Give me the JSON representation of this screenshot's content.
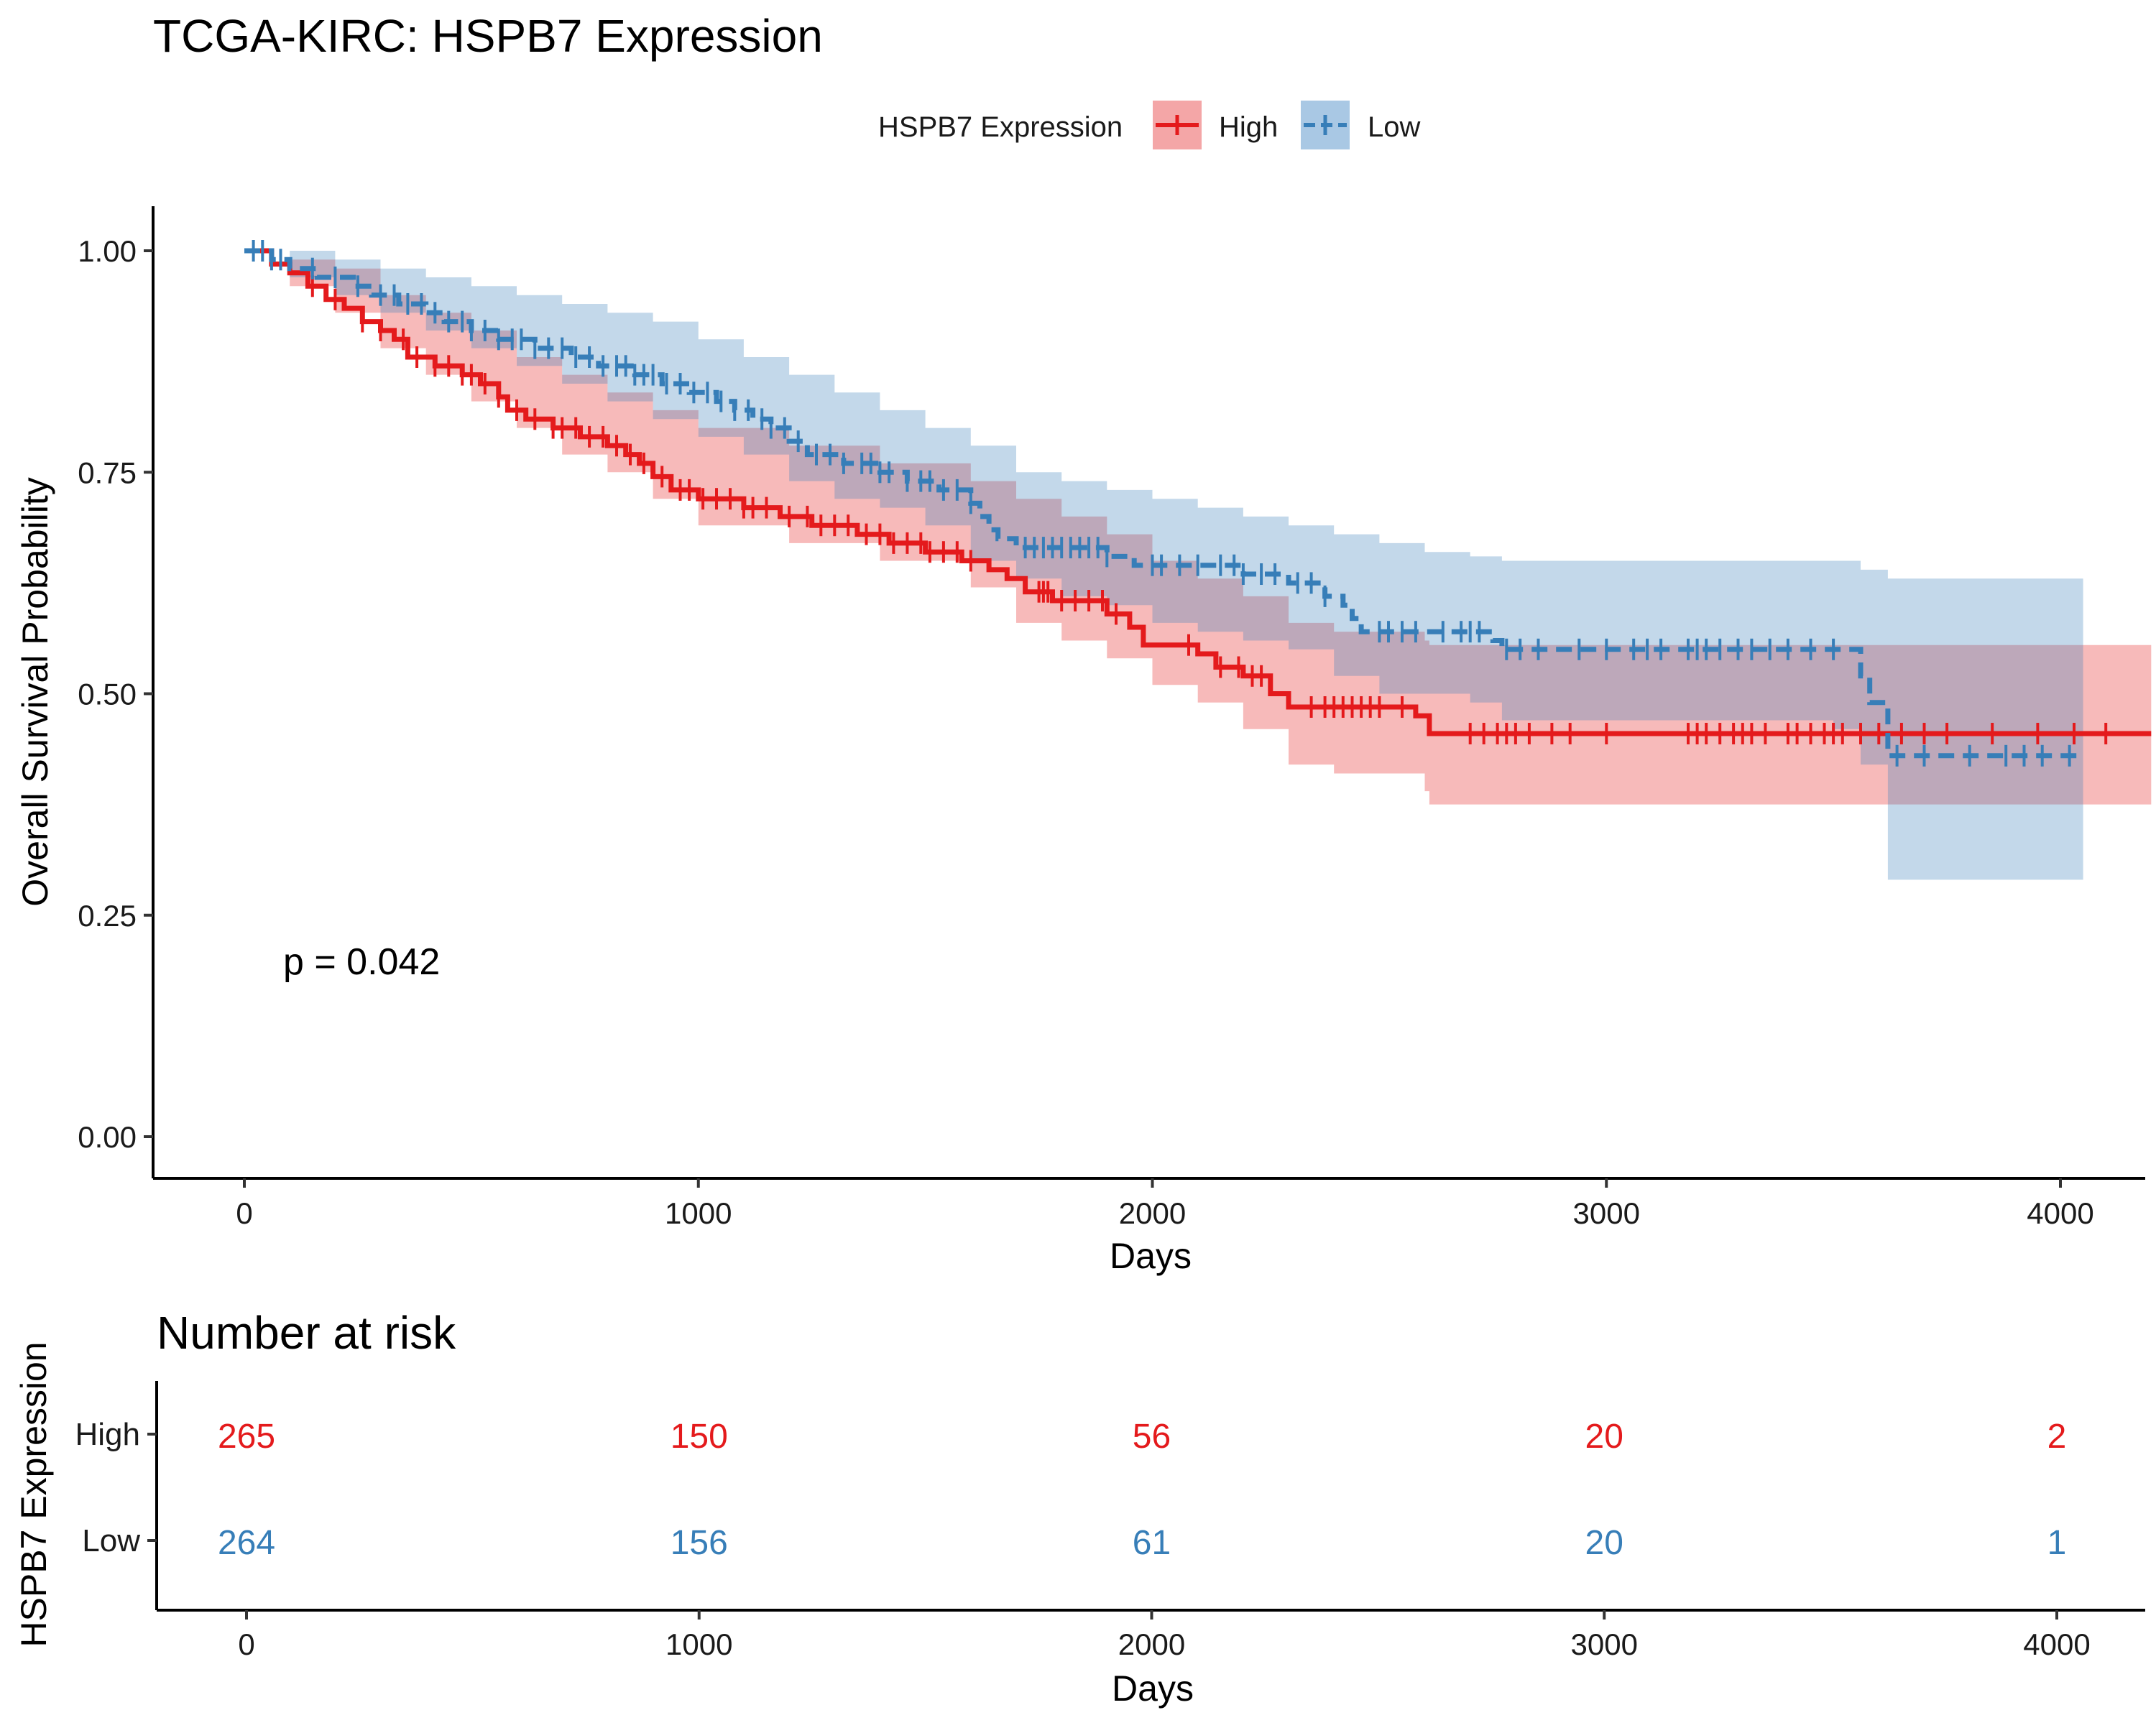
{
  "title": "TCGA-KIRC: HSPB7 Expression",
  "legend": {
    "title": "HSPB7 Expression",
    "entries": [
      {
        "label": "High",
        "color": "#E41A1C",
        "fill": "#F4A6A7"
      },
      {
        "label": "Low",
        "color": "#377EB8",
        "fill": "#A9C8E4"
      }
    ]
  },
  "p_value_text": "p = 0.042",
  "chart_data": [
    {
      "type": "line",
      "subtype": "kaplan-meier step curve with confidence bands and censor marks",
      "xlabel": "Days",
      "ylabel": "Overall Survival Probability",
      "xlim": [
        -200,
        4200
      ],
      "ylim": [
        -0.05,
        1.05
      ],
      "x_ticks": [
        0,
        1000,
        2000,
        3000,
        4000
      ],
      "y_ticks": [
        0.0,
        0.25,
        0.5,
        0.75,
        1.0
      ],
      "y_tick_labels": [
        "0.00",
        "0.25",
        "0.50",
        "0.75",
        "1.00"
      ],
      "grid": false,
      "legend_position": "top",
      "series": [
        {
          "name": "High",
          "color": "#E41A1C",
          "dashed": false,
          "steps": [
            [
              0,
              1.0
            ],
            [
              60,
              0.985
            ],
            [
              100,
              0.975
            ],
            [
              140,
              0.96
            ],
            [
              180,
              0.945
            ],
            [
              220,
              0.935
            ],
            [
              260,
              0.92
            ],
            [
              300,
              0.91
            ],
            [
              330,
              0.9
            ],
            [
              360,
              0.88
            ],
            [
              420,
              0.87
            ],
            [
              480,
              0.86
            ],
            [
              520,
              0.85
            ],
            [
              560,
              0.835
            ],
            [
              580,
              0.82
            ],
            [
              620,
              0.81
            ],
            [
              680,
              0.8
            ],
            [
              740,
              0.79
            ],
            [
              800,
              0.78
            ],
            [
              840,
              0.77
            ],
            [
              870,
              0.76
            ],
            [
              900,
              0.745
            ],
            [
              940,
              0.73
            ],
            [
              1000,
              0.72
            ],
            [
              1100,
              0.71
            ],
            [
              1180,
              0.7
            ],
            [
              1250,
              0.69
            ],
            [
              1350,
              0.68
            ],
            [
              1420,
              0.67
            ],
            [
              1500,
              0.66
            ],
            [
              1580,
              0.65
            ],
            [
              1640,
              0.64
            ],
            [
              1680,
              0.63
            ],
            [
              1720,
              0.615
            ],
            [
              1780,
              0.605
            ],
            [
              1900,
              0.59
            ],
            [
              1950,
              0.575
            ],
            [
              1980,
              0.555
            ],
            [
              2100,
              0.545
            ],
            [
              2140,
              0.53
            ],
            [
              2200,
              0.52
            ],
            [
              2260,
              0.5
            ],
            [
              2300,
              0.485
            ],
            [
              2580,
              0.475
            ],
            [
              2610,
              0.455
            ],
            [
              4200,
              0.455
            ]
          ],
          "lower": [
            [
              0,
              1.0
            ],
            [
              100,
              0.96
            ],
            [
              200,
              0.93
            ],
            [
              300,
              0.89
            ],
            [
              400,
              0.86
            ],
            [
              500,
              0.83
            ],
            [
              600,
              0.8
            ],
            [
              700,
              0.77
            ],
            [
              800,
              0.75
            ],
            [
              900,
              0.72
            ],
            [
              1000,
              0.69
            ],
            [
              1200,
              0.67
            ],
            [
              1400,
              0.65
            ],
            [
              1600,
              0.62
            ],
            [
              1700,
              0.58
            ],
            [
              1800,
              0.56
            ],
            [
              1900,
              0.54
            ],
            [
              2000,
              0.51
            ],
            [
              2100,
              0.49
            ],
            [
              2200,
              0.46
            ],
            [
              2300,
              0.42
            ],
            [
              2400,
              0.41
            ],
            [
              2600,
              0.39
            ],
            [
              2610,
              0.375
            ],
            [
              4200,
              0.375
            ]
          ],
          "upper": [
            [
              0,
              1.0
            ],
            [
              100,
              0.99
            ],
            [
              200,
              0.98
            ],
            [
              300,
              0.95
            ],
            [
              400,
              0.93
            ],
            [
              500,
              0.91
            ],
            [
              600,
              0.88
            ],
            [
              700,
              0.86
            ],
            [
              800,
              0.84
            ],
            [
              900,
              0.82
            ],
            [
              1000,
              0.8
            ],
            [
              1200,
              0.78
            ],
            [
              1400,
              0.76
            ],
            [
              1600,
              0.74
            ],
            [
              1700,
              0.72
            ],
            [
              1800,
              0.7
            ],
            [
              1900,
              0.68
            ],
            [
              2000,
              0.65
            ],
            [
              2100,
              0.63
            ],
            [
              2200,
              0.61
            ],
            [
              2300,
              0.58
            ],
            [
              2400,
              0.57
            ],
            [
              2600,
              0.56
            ],
            [
              2610,
              0.555
            ],
            [
              4200,
              0.555
            ]
          ],
          "censor_x": [
            150,
            200,
            260,
            300,
            350,
            380,
            420,
            450,
            480,
            500,
            530,
            560,
            600,
            640,
            680,
            700,
            730,
            760,
            790,
            820,
            850,
            880,
            920,
            960,
            980,
            1010,
            1040,
            1070,
            1100,
            1120,
            1150,
            1200,
            1240,
            1270,
            1300,
            1330,
            1370,
            1400,
            1430,
            1460,
            1490,
            1510,
            1540,
            1570,
            1600,
            1750,
            1760,
            1770,
            1800,
            1830,
            1860,
            1890,
            1920,
            2080,
            2150,
            2190,
            2220,
            2240,
            2350,
            2380,
            2400,
            2420,
            2440,
            2460,
            2480,
            2500,
            2550,
            2700,
            2730,
            2760,
            2780,
            2800,
            2830,
            2880,
            2920,
            3000,
            3180,
            3200,
            3220,
            3250,
            3280,
            3300,
            3320,
            3350,
            3400,
            3420,
            3450,
            3480,
            3500,
            3520,
            3560,
            3600,
            3650,
            3700,
            3750,
            3850,
            3950,
            4030,
            4100
          ]
        },
        {
          "name": "Low",
          "color": "#377EB8",
          "dashed": true,
          "steps": [
            [
              0,
              1.0
            ],
            [
              60,
              0.99
            ],
            [
              100,
              0.98
            ],
            [
              160,
              0.97
            ],
            [
              240,
              0.96
            ],
            [
              280,
              0.95
            ],
            [
              340,
              0.94
            ],
            [
              400,
              0.93
            ],
            [
              440,
              0.92
            ],
            [
              500,
              0.91
            ],
            [
              560,
              0.9
            ],
            [
              640,
              0.89
            ],
            [
              720,
              0.88
            ],
            [
              780,
              0.87
            ],
            [
              860,
              0.86
            ],
            [
              920,
              0.85
            ],
            [
              980,
              0.84
            ],
            [
              1040,
              0.83
            ],
            [
              1080,
              0.82
            ],
            [
              1120,
              0.81
            ],
            [
              1160,
              0.8
            ],
            [
              1200,
              0.785
            ],
            [
              1240,
              0.77
            ],
            [
              1320,
              0.76
            ],
            [
              1400,
              0.75
            ],
            [
              1460,
              0.74
            ],
            [
              1530,
              0.73
            ],
            [
              1600,
              0.715
            ],
            [
              1620,
              0.7
            ],
            [
              1640,
              0.685
            ],
            [
              1660,
              0.675
            ],
            [
              1700,
              0.665
            ],
            [
              1900,
              0.655
            ],
            [
              1960,
              0.645
            ],
            [
              2200,
              0.635
            ],
            [
              2300,
              0.625
            ],
            [
              2380,
              0.61
            ],
            [
              2420,
              0.6
            ],
            [
              2440,
              0.585
            ],
            [
              2460,
              0.57
            ],
            [
              2750,
              0.56
            ],
            [
              2770,
              0.55
            ],
            [
              3560,
              0.52
            ],
            [
              3580,
              0.49
            ],
            [
              3620,
              0.43
            ],
            [
              4050,
              0.43
            ]
          ],
          "lower": [
            [
              0,
              1.0
            ],
            [
              100,
              0.97
            ],
            [
              200,
              0.95
            ],
            [
              300,
              0.93
            ],
            [
              400,
              0.91
            ],
            [
              500,
              0.89
            ],
            [
              600,
              0.87
            ],
            [
              700,
              0.85
            ],
            [
              800,
              0.83
            ],
            [
              900,
              0.81
            ],
            [
              1000,
              0.79
            ],
            [
              1100,
              0.77
            ],
            [
              1200,
              0.74
            ],
            [
              1300,
              0.72
            ],
            [
              1400,
              0.71
            ],
            [
              1500,
              0.69
            ],
            [
              1600,
              0.65
            ],
            [
              1700,
              0.63
            ],
            [
              1800,
              0.61
            ],
            [
              1900,
              0.6
            ],
            [
              2000,
              0.58
            ],
            [
              2100,
              0.57
            ],
            [
              2200,
              0.56
            ],
            [
              2300,
              0.55
            ],
            [
              2400,
              0.52
            ],
            [
              2500,
              0.5
            ],
            [
              2700,
              0.49
            ],
            [
              2770,
              0.47
            ],
            [
              3500,
              0.46
            ],
            [
              3560,
              0.42
            ],
            [
              3620,
              0.29
            ],
            [
              4050,
              0.29
            ]
          ],
          "upper": [
            [
              0,
              1.0
            ],
            [
              100,
              1.0
            ],
            [
              200,
              0.99
            ],
            [
              300,
              0.98
            ],
            [
              400,
              0.97
            ],
            [
              500,
              0.96
            ],
            [
              600,
              0.95
            ],
            [
              700,
              0.94
            ],
            [
              800,
              0.93
            ],
            [
              900,
              0.92
            ],
            [
              1000,
              0.9
            ],
            [
              1100,
              0.88
            ],
            [
              1200,
              0.86
            ],
            [
              1300,
              0.84
            ],
            [
              1400,
              0.82
            ],
            [
              1500,
              0.8
            ],
            [
              1600,
              0.78
            ],
            [
              1700,
              0.75
            ],
            [
              1800,
              0.74
            ],
            [
              1900,
              0.73
            ],
            [
              2000,
              0.72
            ],
            [
              2100,
              0.71
            ],
            [
              2200,
              0.7
            ],
            [
              2300,
              0.69
            ],
            [
              2400,
              0.68
            ],
            [
              2500,
              0.67
            ],
            [
              2600,
              0.66
            ],
            [
              2700,
              0.655
            ],
            [
              2770,
              0.65
            ],
            [
              3500,
              0.65
            ],
            [
              3560,
              0.64
            ],
            [
              3620,
              0.63
            ],
            [
              4050,
              0.63
            ]
          ],
          "censor_x": [
            20,
            40,
            60,
            80,
            150,
            200,
            250,
            300,
            330,
            360,
            390,
            420,
            450,
            480,
            500,
            530,
            560,
            590,
            610,
            640,
            670,
            700,
            730,
            760,
            790,
            820,
            840,
            860,
            880,
            900,
            930,
            960,
            990,
            1020,
            1050,
            1080,
            1110,
            1140,
            1160,
            1190,
            1220,
            1260,
            1290,
            1320,
            1360,
            1380,
            1400,
            1420,
            1460,
            1490,
            1510,
            1540,
            1570,
            1600,
            1720,
            1740,
            1760,
            1780,
            1800,
            1820,
            1840,
            1860,
            1880,
            1900,
            2000,
            2020,
            2060,
            2100,
            2150,
            2180,
            2200,
            2240,
            2270,
            2320,
            2350,
            2380,
            2500,
            2520,
            2550,
            2580,
            2640,
            2680,
            2700,
            2720,
            2780,
            2810,
            2850,
            2940,
            3000,
            3060,
            3090,
            3120,
            3180,
            3200,
            3220,
            3250,
            3290,
            3320,
            3360,
            3400,
            3450,
            3500,
            3640,
            3700,
            3800,
            3880,
            3920,
            3960,
            4020
          ]
        }
      ]
    },
    {
      "type": "table",
      "title": "Number at risk",
      "xlabel": "Days",
      "ylabel": "HSPB7 Expression",
      "x_ticks": [
        0,
        1000,
        2000,
        3000,
        4000
      ],
      "rows": [
        {
          "name": "High",
          "color": "#E41A1C",
          "values": [
            265,
            150,
            56,
            20,
            2
          ]
        },
        {
          "name": "Low",
          "color": "#377EB8",
          "values": [
            264,
            156,
            61,
            20,
            1
          ]
        }
      ]
    }
  ]
}
